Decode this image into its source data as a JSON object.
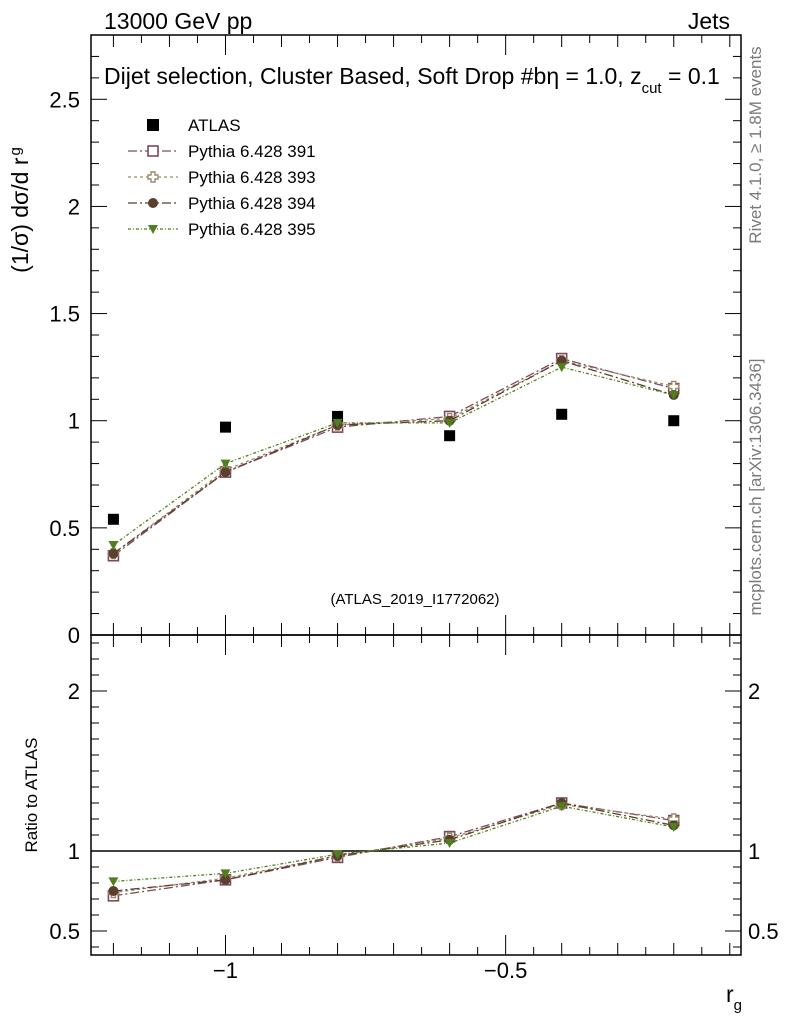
{
  "header": {
    "left": "13000 GeV pp",
    "right": "Jets"
  },
  "plot_title_text": "Dijet selection, Cluster Based, Soft Drop #b",
  "plot_title_tail": {
    "eta": "η = 1.0, z",
    "cut": "cut",
    "val": " = 0.1"
  },
  "side_texts": {
    "rivet": "Rivet 4.1.0, ≥ 1.8M events",
    "mcplots": "mcplots.cern.ch [arXiv:1306.3436]"
  },
  "watermark": "(ATLAS_2019_I1772062)",
  "ylabel": {
    "main": "(1/σ) dσ/d r",
    "sub": "g"
  },
  "ratio_ylabel": "Ratio to ATLAS",
  "xlabel": {
    "main": "r",
    "sub": "g"
  },
  "colors": {
    "atlas": "#000000",
    "p391": "#7a4c5c",
    "p393": "#9c8a6a",
    "p394": "#5c3f2e",
    "p395": "#4f7f1e"
  },
  "chart_data": {
    "type": "line",
    "x": [
      -1.2,
      -1.0,
      -0.8,
      -0.6,
      -0.4,
      -0.2
    ],
    "xlim": [
      -1.24,
      -0.08
    ],
    "main": {
      "ylim": [
        0,
        2.8
      ],
      "yticks": [
        0.5,
        1,
        1.5,
        2,
        2.5
      ],
      "ytick_labels": [
        "0.5",
        "1",
        "1.5",
        "2",
        "2.5"
      ],
      "zero_label": "0"
    },
    "ratio": {
      "ylim": [
        0.35,
        2.35
      ],
      "ref": 1,
      "yticks": [
        0.5,
        1,
        2
      ],
      "ytick_labels": [
        "0.5",
        "1",
        "2"
      ]
    },
    "xticks": [
      -1.0,
      -0.5
    ],
    "xtick_labels": [
      "−1",
      "−0.5"
    ],
    "series": [
      {
        "name": "ATLAS",
        "color_key": "atlas",
        "marker": "square-filled",
        "dash": "",
        "values": [
          0.54,
          0.97,
          1.02,
          0.93,
          1.03,
          1.0
        ],
        "ratio": [
          1,
          1,
          1,
          1,
          1,
          1
        ]
      },
      {
        "name": "Pythia 6.428 391",
        "color_key": "p391",
        "marker": "square-open",
        "dash": "9,3,2,3",
        "values": [
          0.37,
          0.76,
          0.97,
          1.02,
          1.29,
          1.15
        ],
        "ratio": [
          0.72,
          0.82,
          0.96,
          1.09,
          1.3,
          1.19
        ]
      },
      {
        "name": "Pythia 6.428 393",
        "color_key": "p393",
        "marker": "cross-open",
        "dash": "3,3",
        "values": [
          0.38,
          0.77,
          0.98,
          1.01,
          1.28,
          1.16
        ],
        "ratio": [
          0.74,
          0.83,
          0.97,
          1.08,
          1.29,
          1.2
        ]
      },
      {
        "name": "Pythia 6.428 394",
        "color_key": "p394",
        "marker": "circle",
        "dash": "9,3,2,3",
        "values": [
          0.38,
          0.76,
          0.98,
          1.0,
          1.28,
          1.12
        ],
        "ratio": [
          0.75,
          0.82,
          0.97,
          1.07,
          1.3,
          1.16
        ]
      },
      {
        "name": "Pythia 6.428 395",
        "color_key": "p395",
        "marker": "triangle-down",
        "dash": "3,2,1,2",
        "values": [
          0.42,
          0.8,
          0.99,
          0.99,
          1.25,
          1.12
        ],
        "ratio": [
          0.81,
          0.86,
          0.98,
          1.05,
          1.28,
          1.15
        ]
      }
    ]
  }
}
